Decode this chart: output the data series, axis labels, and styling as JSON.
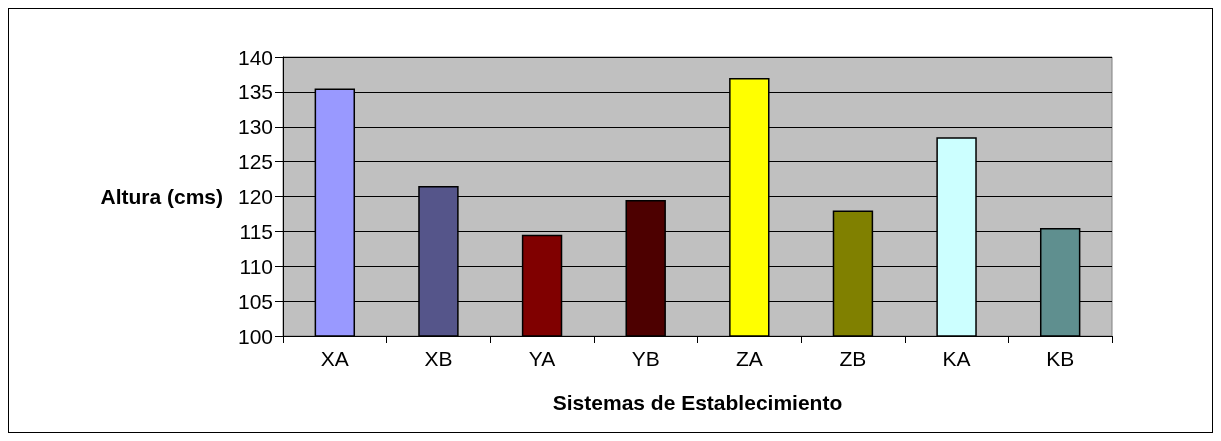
{
  "chart_data": {
    "type": "bar",
    "xlabel": "Sistemas de Establecimiento",
    "ylabel": "Altura (cms)",
    "categories": [
      "XA",
      "XB",
      "YA",
      "YB",
      "ZA",
      "ZB",
      "KA",
      "KB"
    ],
    "values": [
      135.5,
      121.5,
      114.5,
      119.5,
      137,
      118,
      128.5,
      115.5
    ],
    "colors": [
      "#9999ff",
      "#55558a",
      "#800000",
      "#4d0000",
      "#ffff00",
      "#808000",
      "#ccffff",
      "#5f8f8f"
    ],
    "ylim": [
      100,
      140
    ],
    "yticks": [
      100,
      105,
      110,
      115,
      120,
      125,
      130,
      135,
      140
    ],
    "grid": "y"
  }
}
